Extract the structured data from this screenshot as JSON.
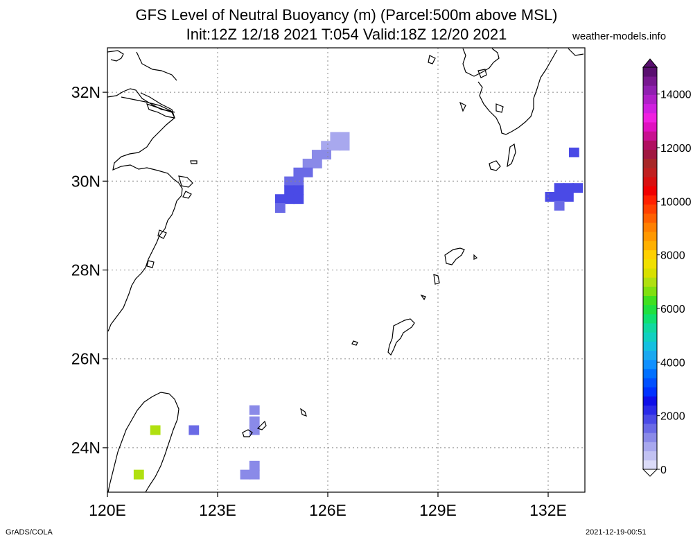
{
  "title_line1": "GFS Level of Neutral Buoyancy (m) (Parcel:500m above MSL)",
  "title_line2": "Init:12Z 12/18 2021 T:054 Valid:18Z 12/20 2021",
  "site": "weather-models.info",
  "credit": "GrADS/COLA",
  "timestamp": "2021-12-19-00:51",
  "map": {
    "lon_range": [
      120,
      133
    ],
    "lat_range": [
      23,
      33
    ],
    "lon_ticks": [
      {
        "v": 120,
        "label": "120E"
      },
      {
        "v": 123,
        "label": "123E"
      },
      {
        "v": 126,
        "label": "126E"
      },
      {
        "v": 129,
        "label": "129E"
      },
      {
        "v": 132,
        "label": "132E"
      }
    ],
    "lat_ticks": [
      {
        "v": 24,
        "label": "24N"
      },
      {
        "v": 26,
        "label": "26N"
      },
      {
        "v": 28,
        "label": "28N"
      },
      {
        "v": 30,
        "label": "30N"
      },
      {
        "v": 32,
        "label": "32N"
      }
    ],
    "grid": true,
    "coastline_color": "#000000"
  },
  "colorbar": {
    "min": 0,
    "max": 15000,
    "labels": [
      "0",
      "2000",
      "4000",
      "6000",
      "8000",
      "10000",
      "12000",
      "14000"
    ],
    "colors": [
      "#dcdcf8",
      "#c2c2f2",
      "#a8a8ee",
      "#8a8ae8",
      "#6a6ae6",
      "#4a4ae6",
      "#2a2ae8",
      "#0f0fe8",
      "#0032ff",
      "#0050ff",
      "#0070ff",
      "#1090ff",
      "#1aa8f0",
      "#14c0e0",
      "#10d0c0",
      "#10d8a0",
      "#10e070",
      "#20e040",
      "#40e020",
      "#80e010",
      "#b0e010",
      "#d8e000",
      "#f0e000",
      "#ffd000",
      "#ffb000",
      "#ff9800",
      "#ff8000",
      "#ff6000",
      "#ff4000",
      "#ff2000",
      "#f00000",
      "#d81010",
      "#c02020",
      "#a82828",
      "#a01840",
      "#b01060",
      "#c81090",
      "#e010c0",
      "#f020e0",
      "#d020e0",
      "#b020c8",
      "#9020b0",
      "#781890",
      "#5a1070"
    ]
  },
  "cells": [
    {
      "lon": 126.2,
      "lat": 31.0,
      "value": 1000
    },
    {
      "lon": 126.45,
      "lat": 31.0,
      "value": 1000
    },
    {
      "lon": 125.95,
      "lat": 30.8,
      "value": 1000
    },
    {
      "lon": 126.2,
      "lat": 30.8,
      "value": 1000
    },
    {
      "lon": 126.45,
      "lat": 30.8,
      "value": 1000
    },
    {
      "lon": 125.7,
      "lat": 30.6,
      "value": 1200
    },
    {
      "lon": 125.95,
      "lat": 30.6,
      "value": 1200
    },
    {
      "lon": 125.7,
      "lat": 30.4,
      "value": 1200
    },
    {
      "lon": 125.45,
      "lat": 30.4,
      "value": 1200
    },
    {
      "lon": 125.2,
      "lat": 30.2,
      "value": 1500
    },
    {
      "lon": 125.45,
      "lat": 30.2,
      "value": 1500
    },
    {
      "lon": 125.2,
      "lat": 30.0,
      "value": 1700
    },
    {
      "lon": 124.95,
      "lat": 30.0,
      "value": 1700
    },
    {
      "lon": 124.95,
      "lat": 29.8,
      "value": 1800
    },
    {
      "lon": 125.2,
      "lat": 29.8,
      "value": 1800
    },
    {
      "lon": 124.7,
      "lat": 29.6,
      "value": 1800
    },
    {
      "lon": 124.95,
      "lat": 29.6,
      "value": 1800
    },
    {
      "lon": 125.2,
      "lat": 29.6,
      "value": 1800
    },
    {
      "lon": 124.7,
      "lat": 29.4,
      "value": 1500
    },
    {
      "lon": 132.7,
      "lat": 30.65,
      "value": 1800
    },
    {
      "lon": 132.3,
      "lat": 29.85,
      "value": 1800
    },
    {
      "lon": 132.55,
      "lat": 29.85,
      "value": 1800
    },
    {
      "lon": 132.8,
      "lat": 29.85,
      "value": 1800
    },
    {
      "lon": 132.05,
      "lat": 29.65,
      "value": 1800
    },
    {
      "lon": 132.3,
      "lat": 29.65,
      "value": 1800
    },
    {
      "lon": 132.55,
      "lat": 29.65,
      "value": 1800
    },
    {
      "lon": 132.3,
      "lat": 29.45,
      "value": 1500
    },
    {
      "lon": 124.0,
      "lat": 24.85,
      "value": 1200
    },
    {
      "lon": 124.0,
      "lat": 24.6,
      "value": 1200
    },
    {
      "lon": 124.0,
      "lat": 24.4,
      "value": 1200
    },
    {
      "lon": 122.35,
      "lat": 24.4,
      "value": 1600
    },
    {
      "lon": 124.0,
      "lat": 23.6,
      "value": 1100
    },
    {
      "lon": 123.75,
      "lat": 23.4,
      "value": 1100
    },
    {
      "lon": 124.0,
      "lat": 23.4,
      "value": 1100
    },
    {
      "lon": 121.3,
      "lat": 24.4,
      "value": 7000
    },
    {
      "lon": 120.85,
      "lat": 23.4,
      "value": 7000
    }
  ]
}
